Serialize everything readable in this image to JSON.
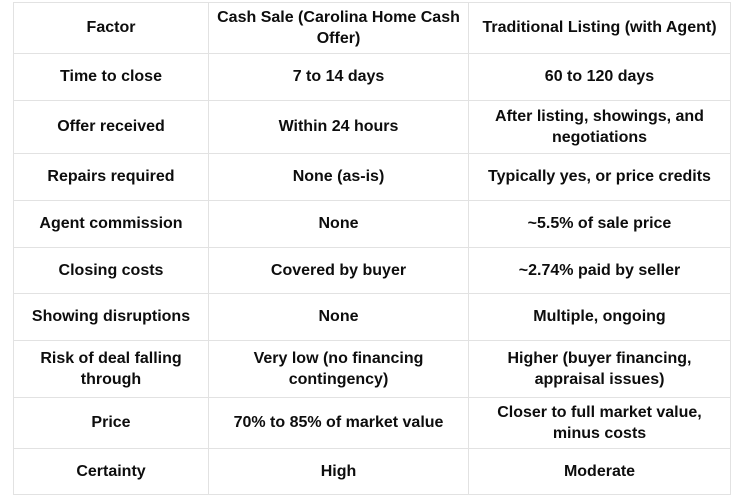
{
  "colors": {
    "background": "#ffffff",
    "border": "#e2e2e2",
    "text": "#0d0d0d"
  },
  "table": {
    "columns": [
      {
        "label": "Factor"
      },
      {
        "label": "Cash Sale (Carolina Home Cash Offer)"
      },
      {
        "label": "Traditional Listing (with Agent)"
      }
    ],
    "rows": [
      {
        "factor": "Time to close",
        "cash_sale": "7 to 14 days",
        "traditional": "60 to 120 days"
      },
      {
        "factor": "Offer received",
        "cash_sale": "Within 24 hours",
        "traditional": "After listing, showings, and negotiations"
      },
      {
        "factor": "Repairs required",
        "cash_sale": "None (as-is)",
        "traditional": "Typically yes, or price credits"
      },
      {
        "factor": "Agent commission",
        "cash_sale": "None",
        "traditional": "~5.5% of sale price"
      },
      {
        "factor": "Closing costs",
        "cash_sale": "Covered by buyer",
        "traditional": "~2.74% paid by seller"
      },
      {
        "factor": "Showing disruptions",
        "cash_sale": "None",
        "traditional": "Multiple, ongoing"
      },
      {
        "factor": "Risk of deal falling through",
        "cash_sale": "Very low (no financing contingency)",
        "traditional": "Higher (buyer financing, appraisal issues)"
      },
      {
        "factor": "Price",
        "cash_sale": "70% to 85% of market value",
        "traditional": "Closer to full market value, minus costs"
      },
      {
        "factor": "Certainty",
        "cash_sale": "High",
        "traditional": "Moderate"
      }
    ]
  }
}
